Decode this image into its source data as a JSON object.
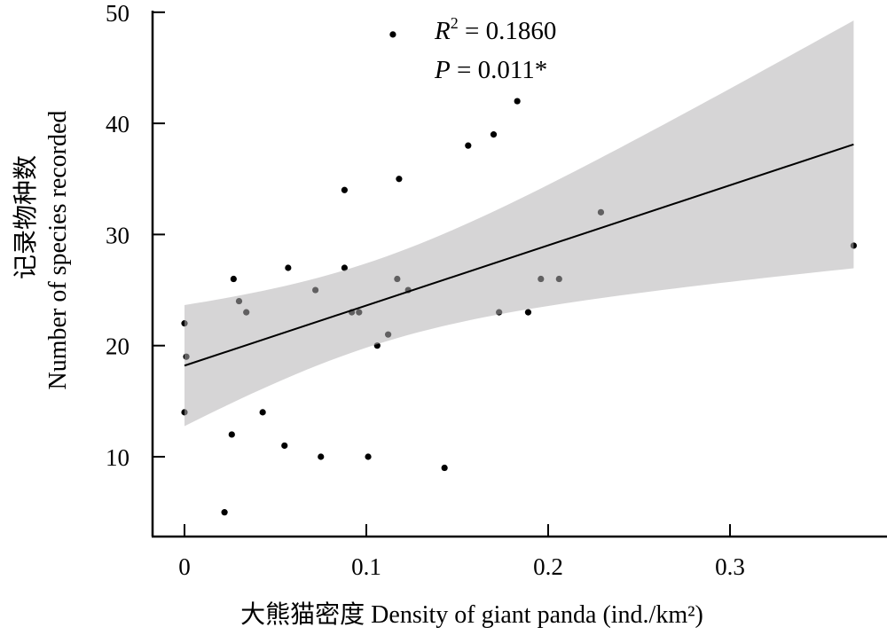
{
  "chart_data": {
    "type": "scatter",
    "title": "",
    "xlabel": "大熊猫密度 Density of giant panda (ind./km²)",
    "ylabel_cn": "记录物种数",
    "ylabel_en": "Number of species recorded",
    "xlim": [
      -0.058,
      0.385
    ],
    "ylim": [
      3.0,
      50
    ],
    "xticks": [
      0,
      0.1,
      0.2,
      0.3
    ],
    "xtick_labels": [
      "0",
      "0.1",
      "0.2",
      "0.3"
    ],
    "yticks": [
      10,
      20,
      30,
      40,
      50
    ],
    "ytick_labels": [
      "10",
      "20",
      "30",
      "40",
      "50"
    ],
    "grid": false,
    "annotations": {
      "r2_label": "R",
      "r2_sup": "2",
      "r2_value": " = 0.1860",
      "p_label": "P",
      "p_value": " = 0.011*"
    },
    "points": [
      [
        0.1146,
        48
      ],
      [
        0.183,
        42
      ],
      [
        0.156,
        38
      ],
      [
        0.17,
        39
      ],
      [
        0.088,
        34
      ],
      [
        0.118,
        35
      ],
      [
        0.229,
        32
      ],
      [
        0.368,
        29
      ],
      [
        0.057,
        27
      ],
      [
        0.088,
        27
      ],
      [
        0.027,
        26
      ],
      [
        0.117,
        26
      ],
      [
        0.196,
        26
      ],
      [
        0.206,
        26
      ],
      [
        0.072,
        25
      ],
      [
        0.123,
        25
      ],
      [
        0.03,
        24
      ],
      [
        0.034,
        23
      ],
      [
        0.092,
        23
      ],
      [
        0.096,
        23
      ],
      [
        0.173,
        23
      ],
      [
        0.189,
        23
      ],
      [
        0.0,
        22
      ],
      [
        0.112,
        21
      ],
      [
        0.106,
        20
      ],
      [
        0.001,
        19
      ],
      [
        0.0,
        14
      ],
      [
        0.043,
        14
      ],
      [
        0.026,
        12
      ],
      [
        0.055,
        11
      ],
      [
        0.075,
        10
      ],
      [
        0.101,
        10
      ],
      [
        0.143,
        9
      ],
      [
        0.022,
        5
      ]
    ],
    "fit": {
      "intercept": 18.2,
      "slope": 54.1,
      "x_range": [
        0,
        0.368
      ]
    },
    "confidence_band": {
      "at_x0": [
        12.7,
        23.6
      ],
      "at_xmax": [
        26.9,
        49.2
      ]
    },
    "colors": {
      "points": "#000000",
      "band": "#b3b1b3",
      "line": "#000000"
    }
  }
}
